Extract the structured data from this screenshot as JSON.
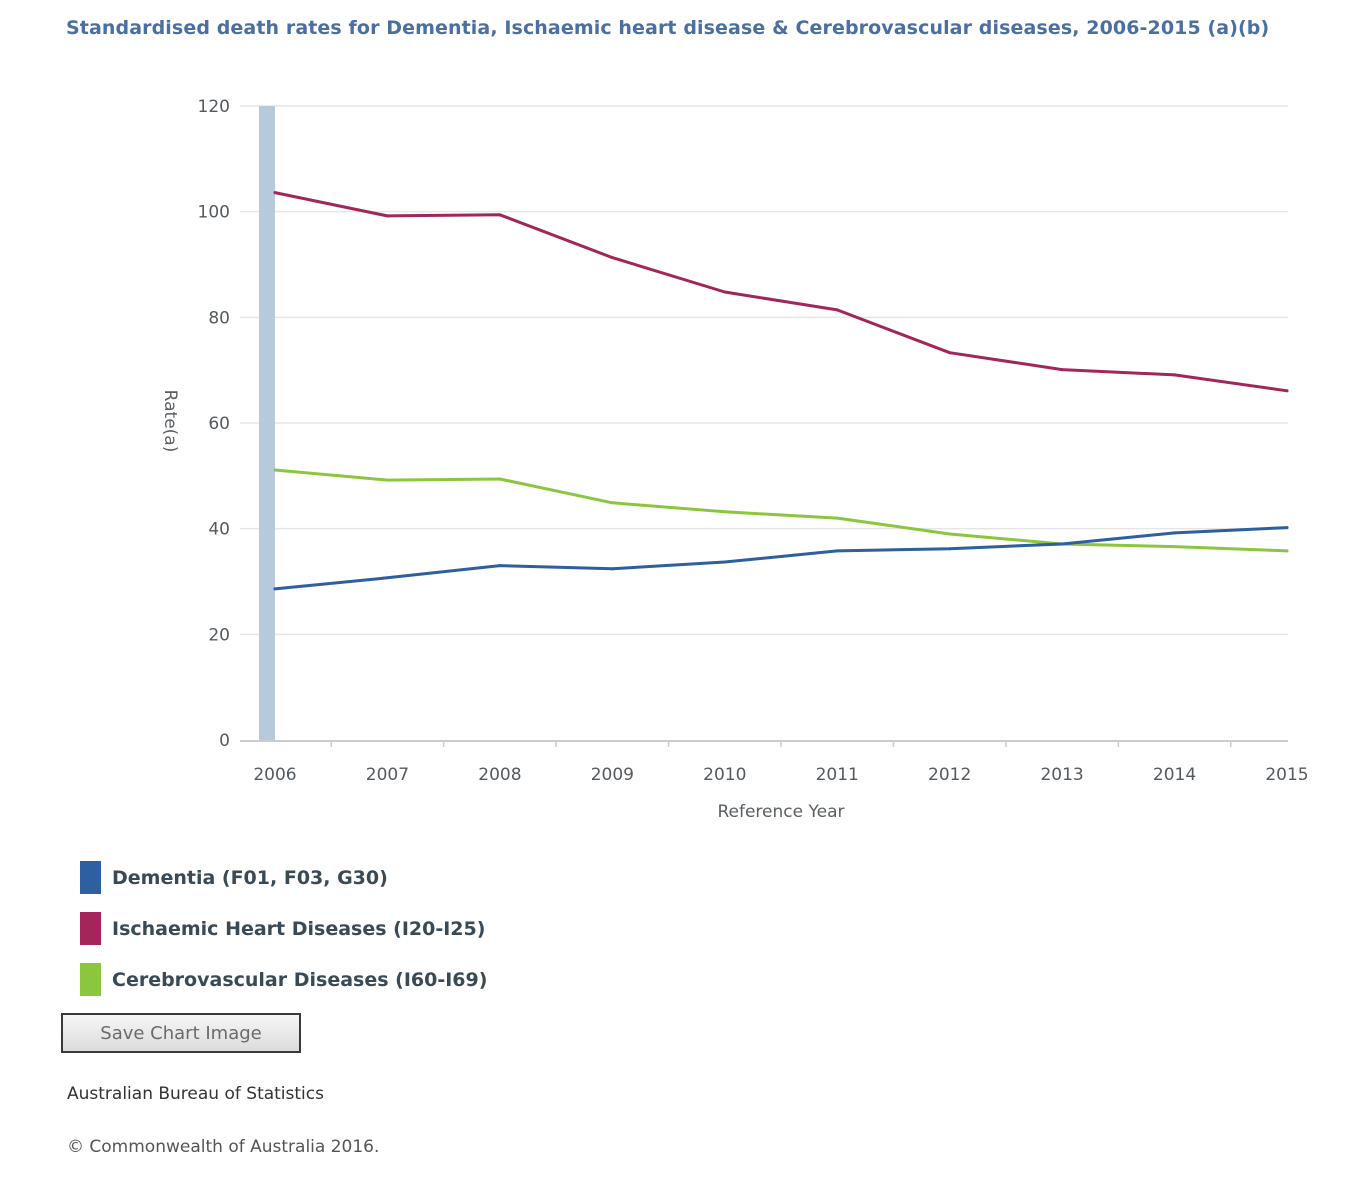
{
  "chart_data": {
    "type": "line",
    "title": "Standardised death rates for Dementia, Ischaemic heart disease & Cerebrovascular diseases, 2006-2015 (a)(b)",
    "xlabel": "Reference Year",
    "ylabel": "Rate(a)",
    "x": [
      "2006",
      "2007",
      "2008",
      "2009",
      "2010",
      "2011",
      "2012",
      "2013",
      "2014",
      "2015"
    ],
    "ylim": [
      0,
      120
    ],
    "yticks": [
      0,
      20,
      40,
      60,
      80,
      100,
      120
    ],
    "grid": true,
    "legend_position": "bottom-left",
    "series": [
      {
        "name": "Dementia (F01, F03, G30)",
        "color": "#2e5f9e",
        "values": [
          28.6,
          30.7,
          33.0,
          32.4,
          33.7,
          35.8,
          36.2,
          37.1,
          39.2,
          40.2
        ]
      },
      {
        "name": "Ischaemic Heart Diseases (I20-I25)",
        "color": "#a3265a",
        "values": [
          103.6,
          99.2,
          99.4,
          91.3,
          84.8,
          81.4,
          73.3,
          70.1,
          69.1,
          66.1
        ]
      },
      {
        "name": "Cerebrovascular Diseases (I60-I69)",
        "color": "#8cc63f",
        "values": [
          51.1,
          49.2,
          49.4,
          44.9,
          43.2,
          42.0,
          39.0,
          37.1,
          36.6,
          35.8
        ]
      }
    ]
  },
  "page": {
    "title": "Standardised death rates for Dementia, Ischaemic heart disease & Cerebrovascular diseases, 2006-2015 (a)(b)",
    "save_button_label": "Save Chart Image",
    "source": "Australian Bureau of Statistics",
    "copyright": "© Commonwealth of Australia 2016."
  },
  "colors": {
    "title": "#4a6fa0",
    "highlight_band": "#b8c9dc"
  }
}
